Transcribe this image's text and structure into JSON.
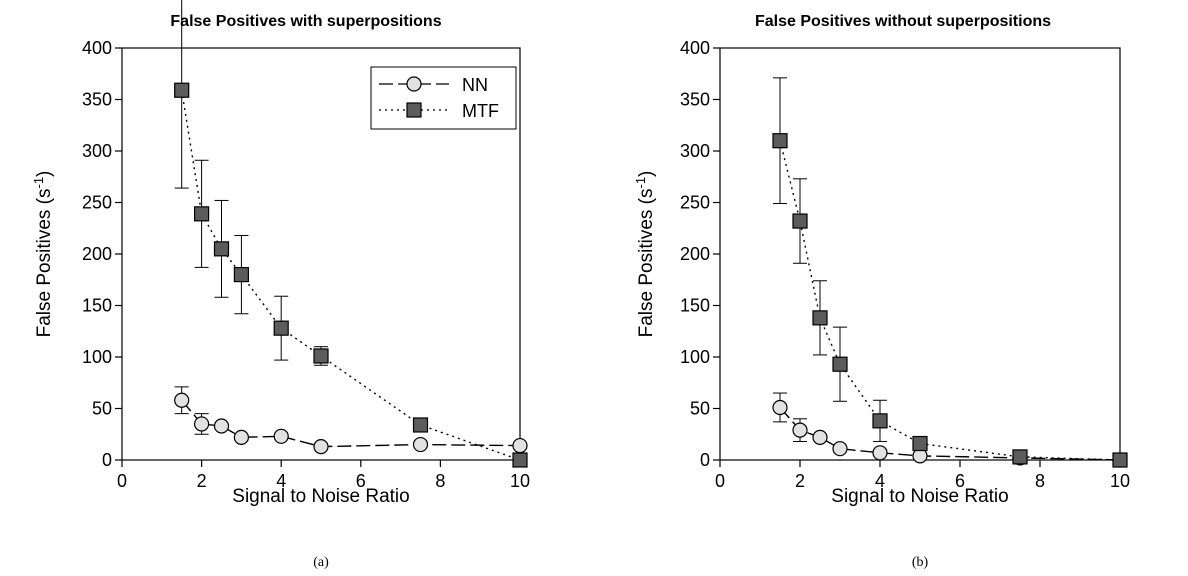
{
  "chart_data": [
    {
      "type": "line",
      "title": "False Positives with superpositions",
      "xlabel": "Signal to Noise Ratio",
      "ylabel_main": "False Positives (s",
      "ylabel_sup": "-1",
      "ylabel_end": ")",
      "caption": "(a)",
      "xlim": [
        0,
        10
      ],
      "ylim": [
        0,
        400
      ],
      "xticks": [
        "0",
        "2",
        "4",
        "6",
        "8",
        "10"
      ],
      "yticks": [
        "0",
        "50",
        "100",
        "150",
        "200",
        "250",
        "300",
        "350",
        "400"
      ],
      "legend": {
        "position": "top-right",
        "entries": [
          "NN",
          "MTF"
        ]
      },
      "series": [
        {
          "name": "NN",
          "marker": "circle",
          "line": "dashed",
          "x": [
            1.5,
            2,
            2.5,
            3,
            4,
            5,
            7.5,
            10
          ],
          "y": [
            58,
            35,
            33,
            22,
            23,
            13,
            15,
            14
          ],
          "err": [
            13,
            10,
            0,
            0,
            0,
            0,
            0,
            0
          ]
        },
        {
          "name": "MTF",
          "marker": "square",
          "line": "dotted",
          "x": [
            1.5,
            2,
            2.5,
            3,
            4,
            5,
            7.5,
            10
          ],
          "y": [
            359,
            239,
            205,
            180,
            128,
            101,
            34,
            0
          ],
          "err": [
            95,
            52,
            47,
            38,
            31,
            9,
            0,
            0
          ]
        }
      ]
    },
    {
      "type": "line",
      "title": "False Positives without superpositions",
      "xlabel": "Signal to Noise Ratio",
      "ylabel_main": "False Positives (s",
      "ylabel_sup": "-1",
      "ylabel_end": ")",
      "caption": "(b)",
      "xlim": [
        0,
        10
      ],
      "ylim": [
        0,
        400
      ],
      "xticks": [
        "0",
        "2",
        "4",
        "6",
        "8",
        "10"
      ],
      "yticks": [
        "0",
        "50",
        "100",
        "150",
        "200",
        "250",
        "300",
        "350",
        "400"
      ],
      "series": [
        {
          "name": "NN",
          "marker": "circle",
          "line": "dashed",
          "x": [
            1.5,
            2,
            2.5,
            3,
            4,
            5,
            7.5,
            10
          ],
          "y": [
            51,
            29,
            22,
            11,
            7,
            4,
            2,
            0
          ],
          "err": [
            14,
            11,
            0,
            0,
            0,
            0,
            0,
            0
          ]
        },
        {
          "name": "MTF",
          "marker": "square",
          "line": "dotted",
          "x": [
            1.5,
            2,
            2.5,
            3,
            4,
            5,
            7.5,
            10
          ],
          "y": [
            310,
            232,
            138,
            93,
            38,
            16,
            3,
            0
          ],
          "err": [
            61,
            41,
            36,
            36,
            20,
            0,
            0,
            0
          ]
        }
      ]
    }
  ]
}
